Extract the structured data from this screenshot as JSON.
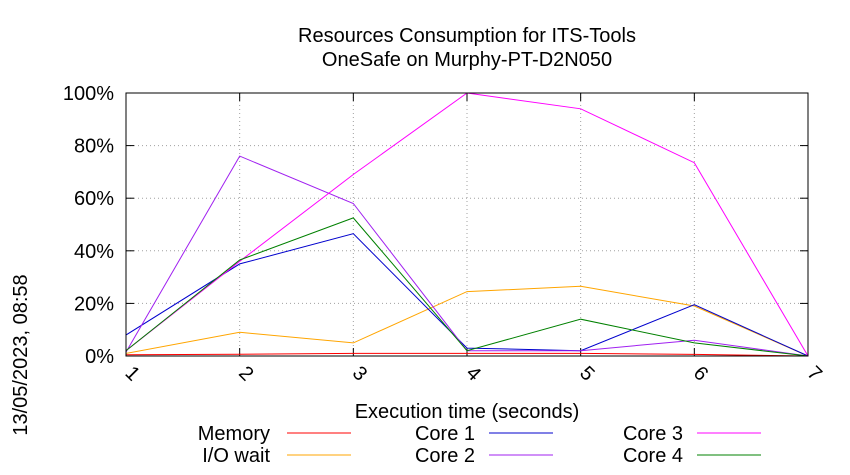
{
  "chart_data": {
    "type": "line",
    "title": "Resources Consumption for ITS-Tools",
    "subtitle": "OneSafe on Murphy-PT-D2N050",
    "xlabel": "Execution time (seconds)",
    "ylabel": "",
    "side_label": "13/05/2023, 08:58",
    "x": [
      1,
      2,
      3,
      4,
      5,
      6,
      7
    ],
    "xlim": [
      1,
      7
    ],
    "ylim": [
      0,
      100
    ],
    "grid": true,
    "x_tick_labels": [
      "1",
      "2",
      "3",
      "4",
      "5",
      "6",
      "7"
    ],
    "y_tick_labels": [
      "0%",
      "20%",
      "40%",
      "60%",
      "80%",
      "100%"
    ],
    "y_tick_values": [
      0,
      20,
      40,
      60,
      80,
      100
    ],
    "legend_position": "bottom",
    "series": [
      {
        "name": "Memory",
        "color": "#ff0000",
        "values": [
          0.5,
          0.7,
          1.0,
          1.0,
          1.0,
          0.6,
          0
        ]
      },
      {
        "name": "I/O wait",
        "color": "#ffa500",
        "values": [
          1,
          9,
          5,
          24.5,
          26.5,
          19,
          0
        ]
      },
      {
        "name": "Core 1",
        "color": "#0000cd",
        "values": [
          8,
          35,
          46.5,
          3,
          2,
          19.5,
          0
        ]
      },
      {
        "name": "Core 2",
        "color": "#a020f0",
        "values": [
          1.5,
          76,
          58,
          2,
          2,
          6,
          0
        ]
      },
      {
        "name": "Core 3",
        "color": "#ff00ff",
        "values": [
          2,
          36,
          69,
          100,
          94,
          73.5,
          0
        ]
      },
      {
        "name": "Core 4",
        "color": "#008000",
        "values": [
          2,
          36.5,
          52.5,
          2,
          14,
          5,
          0
        ]
      }
    ]
  }
}
